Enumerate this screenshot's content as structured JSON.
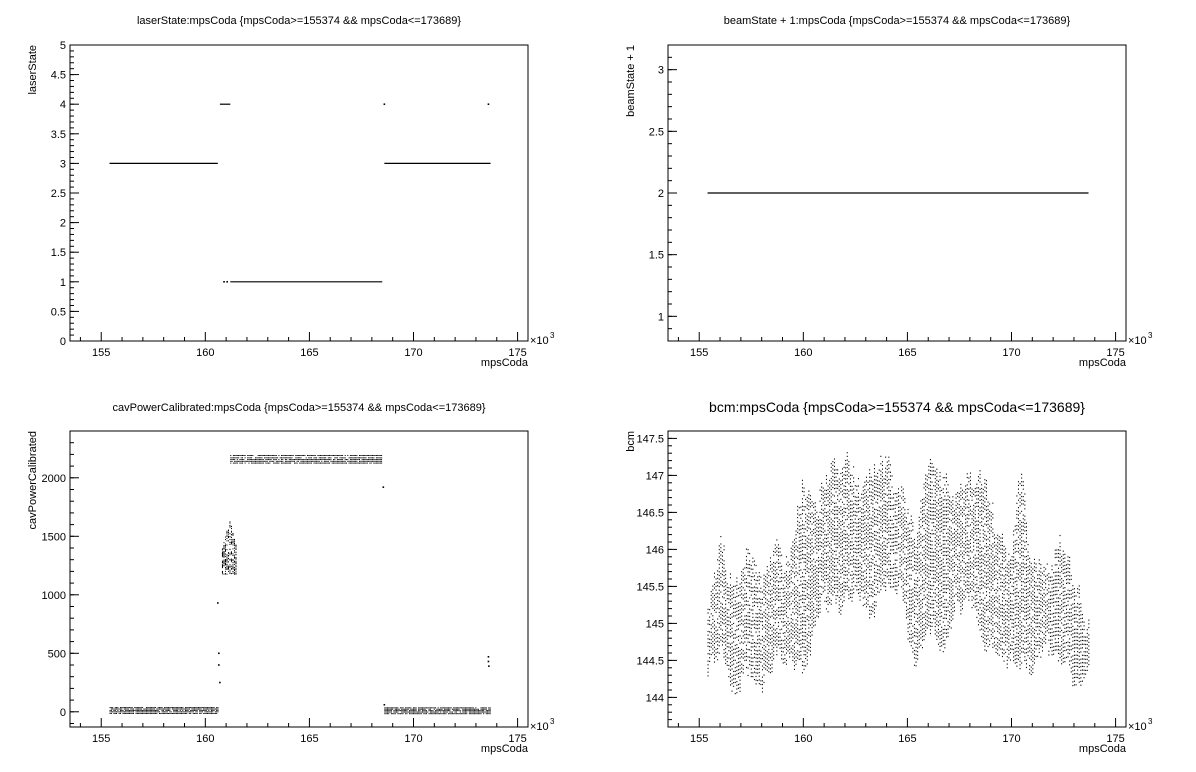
{
  "chart_data": [
    {
      "type": "scatter",
      "title": "laserState:mpsCoda {mpsCoda>=155374 && mpsCoda<=173689}",
      "xlabel": "mpsCoda",
      "ylabel": "laserState",
      "x_multiplier_label": "×10",
      "x_multiplier_exp": "3",
      "xlim": [
        153.5,
        175.5
      ],
      "ylim": [
        0,
        5
      ],
      "x_ticks": [
        155,
        160,
        165,
        170,
        175
      ],
      "y_ticks": [
        0,
        0.5,
        1,
        1.5,
        2,
        2.5,
        3,
        3.5,
        4,
        4.5,
        5
      ],
      "x_tick_labels": [
        "155",
        "160",
        "165",
        "170",
        "175"
      ],
      "y_tick_labels": [
        "0",
        "0.5",
        "1",
        "1.5",
        "2",
        "2.5",
        "3",
        "3.5",
        "4",
        "4.5",
        "5"
      ],
      "segments": [
        {
          "x": [
            155.4,
            160.6
          ],
          "y": 3
        },
        {
          "x": [
            160.7,
            161.2
          ],
          "y": 4
        },
        {
          "x": [
            161.2,
            168.5
          ],
          "y": 1
        },
        {
          "x": [
            168.6,
            173.7
          ],
          "y": 3
        }
      ],
      "points": [
        {
          "x": 160.9,
          "y": 1
        },
        {
          "x": 161.05,
          "y": 1
        },
        {
          "x": 168.6,
          "y": 4
        },
        {
          "x": 173.6,
          "y": 4
        }
      ]
    },
    {
      "type": "scatter",
      "title": "beamState + 1:mpsCoda {mpsCoda>=155374 && mpsCoda<=173689}",
      "xlabel": "mpsCoda",
      "ylabel": "beamState + 1",
      "x_multiplier_label": "×10",
      "x_multiplier_exp": "3",
      "xlim": [
        153.5,
        175.5
      ],
      "ylim": [
        0.8,
        3.2
      ],
      "x_ticks": [
        155,
        160,
        165,
        170,
        175
      ],
      "y_ticks": [
        1,
        1.5,
        2,
        2.5,
        3
      ],
      "x_tick_labels": [
        "155",
        "160",
        "165",
        "170",
        "175"
      ],
      "y_tick_labels": [
        "1",
        "1.5",
        "2",
        "2.5",
        "3"
      ],
      "segments": [
        {
          "x": [
            155.4,
            173.7
          ],
          "y": 2
        }
      ],
      "points": []
    },
    {
      "type": "scatter",
      "title": "cavPowerCalibrated:mpsCoda {mpsCoda>=155374 && mpsCoda<=173689}",
      "xlabel": "mpsCoda",
      "ylabel": "cavPowerCalibrated",
      "x_multiplier_label": "×10",
      "x_multiplier_exp": "3",
      "xlim": [
        153.5,
        175.5
      ],
      "ylim": [
        -130,
        2400
      ],
      "x_ticks": [
        155,
        160,
        165,
        170,
        175
      ],
      "y_ticks": [
        0,
        500,
        1000,
        1500,
        2000
      ],
      "x_tick_labels": [
        "155",
        "160",
        "165",
        "170",
        "175"
      ],
      "y_tick_labels": [
        "0",
        "500",
        "1000",
        "1500",
        "2000"
      ],
      "bands": [
        {
          "x": [
            155.4,
            160.6
          ],
          "y": [
            -20,
            40
          ],
          "rows": [
            40,
            28,
            16,
            4,
            -10
          ]
        },
        {
          "x": [
            161.2,
            168.5
          ],
          "y": [
            2120,
            2200
          ],
          "rows": [
            2195,
            2175,
            2160,
            2145,
            2130
          ]
        },
        {
          "x": [
            168.6,
            173.7
          ],
          "y": [
            -20,
            40
          ],
          "rows": [
            38,
            26,
            14,
            2,
            -12
          ]
        }
      ],
      "clusters": [
        {
          "x": [
            160.8,
            161.5
          ],
          "y": [
            1180,
            1650
          ]
        }
      ],
      "points": [
        {
          "x": 160.6,
          "y": 930
        },
        {
          "x": 160.65,
          "y": 500
        },
        {
          "x": 160.65,
          "y": 400
        },
        {
          "x": 160.7,
          "y": 250
        },
        {
          "x": 168.55,
          "y": 1920
        },
        {
          "x": 168.6,
          "y": 60
        },
        {
          "x": 173.6,
          "y": 470
        },
        {
          "x": 173.6,
          "y": 430
        },
        {
          "x": 173.62,
          "y": 390
        }
      ]
    },
    {
      "type": "scatter",
      "title": "bcm:mpsCoda {mpsCoda>=155374 && mpsCoda<=173689}",
      "xlabel": "mpsCoda",
      "ylabel": "bcm",
      "x_multiplier_label": "×10",
      "x_multiplier_exp": "3",
      "xlim": [
        153.5,
        175.5
      ],
      "ylim": [
        143.6,
        147.6
      ],
      "x_ticks": [
        155,
        160,
        165,
        170,
        175
      ],
      "y_ticks": [
        144,
        144.5,
        145,
        145.5,
        146,
        146.5,
        147,
        147.5
      ],
      "x_tick_labels": [
        "155",
        "160",
        "165",
        "170",
        "175"
      ],
      "y_tick_labels": [
        "144",
        "144.5",
        "145",
        "145.5",
        "146",
        "146.5",
        "147",
        "147.5"
      ],
      "x_range": [
        155.4,
        173.7
      ],
      "envelope": [
        {
          "x": 155.4,
          "lo": 144.2,
          "hi": 145.3
        },
        {
          "x": 156.0,
          "lo": 144.6,
          "hi": 146.3
        },
        {
          "x": 156.7,
          "lo": 143.9,
          "hi": 145.6
        },
        {
          "x": 157.3,
          "lo": 144.3,
          "hi": 146.2
        },
        {
          "x": 158.0,
          "lo": 144.0,
          "hi": 145.8
        },
        {
          "x": 158.7,
          "lo": 144.5,
          "hi": 146.2
        },
        {
          "x": 159.3,
          "lo": 144.4,
          "hi": 146.0
        },
        {
          "x": 160.0,
          "lo": 144.2,
          "hi": 147.1
        },
        {
          "x": 160.7,
          "lo": 145.0,
          "hi": 146.8
        },
        {
          "x": 161.3,
          "lo": 145.2,
          "hi": 147.3
        },
        {
          "x": 162.0,
          "lo": 145.1,
          "hi": 147.4
        },
        {
          "x": 162.7,
          "lo": 145.3,
          "hi": 147.0
        },
        {
          "x": 163.3,
          "lo": 145.0,
          "hi": 147.2
        },
        {
          "x": 164.0,
          "lo": 145.5,
          "hi": 147.4
        },
        {
          "x": 164.7,
          "lo": 145.3,
          "hi": 146.9
        },
        {
          "x": 165.3,
          "lo": 144.3,
          "hi": 146.4
        },
        {
          "x": 166.0,
          "lo": 144.8,
          "hi": 147.3
        },
        {
          "x": 166.7,
          "lo": 144.6,
          "hi": 147.2
        },
        {
          "x": 167.3,
          "lo": 145.0,
          "hi": 146.8
        },
        {
          "x": 168.0,
          "lo": 145.3,
          "hi": 147.2
        },
        {
          "x": 168.7,
          "lo": 144.5,
          "hi": 147.1
        },
        {
          "x": 169.3,
          "lo": 144.6,
          "hi": 146.4
        },
        {
          "x": 170.0,
          "lo": 144.3,
          "hi": 146.1
        },
        {
          "x": 170.4,
          "lo": 144.4,
          "hi": 147.3
        },
        {
          "x": 171.0,
          "lo": 144.3,
          "hi": 145.9
        },
        {
          "x": 171.7,
          "lo": 144.6,
          "hi": 146.0
        },
        {
          "x": 172.3,
          "lo": 144.4,
          "hi": 146.3
        },
        {
          "x": 173.0,
          "lo": 144.1,
          "hi": 145.8
        },
        {
          "x": 173.7,
          "lo": 144.2,
          "hi": 145.1
        }
      ]
    }
  ]
}
